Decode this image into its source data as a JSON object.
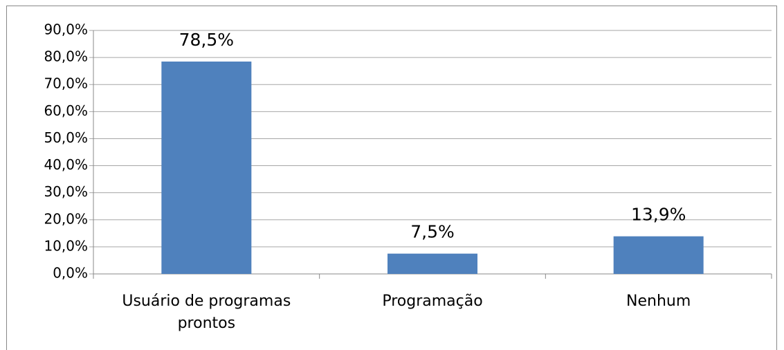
{
  "chart_data": {
    "type": "bar",
    "categories": [
      "Usuário de programas prontos",
      "Programação",
      "Nenhum"
    ],
    "values": [
      78.5,
      7.5,
      13.9
    ],
    "value_labels": [
      "78,5%",
      "7,5%",
      "13,9%"
    ],
    "color": "#4f81bd",
    "ylim": [
      0,
      90
    ],
    "yticks": [
      {
        "value": 0,
        "label": "0,0%"
      },
      {
        "value": 10,
        "label": "10,0%"
      },
      {
        "value": 20,
        "label": "20,0%"
      },
      {
        "value": 30,
        "label": "30,0%"
      },
      {
        "value": 40,
        "label": "40,0%"
      },
      {
        "value": 50,
        "label": "50,0%"
      },
      {
        "value": 60,
        "label": "60,0%"
      },
      {
        "value": 70,
        "label": "70,0%"
      },
      {
        "value": 80,
        "label": "80,0%"
      },
      {
        "value": 90,
        "label": "90,0%"
      }
    ],
    "grid": true
  }
}
